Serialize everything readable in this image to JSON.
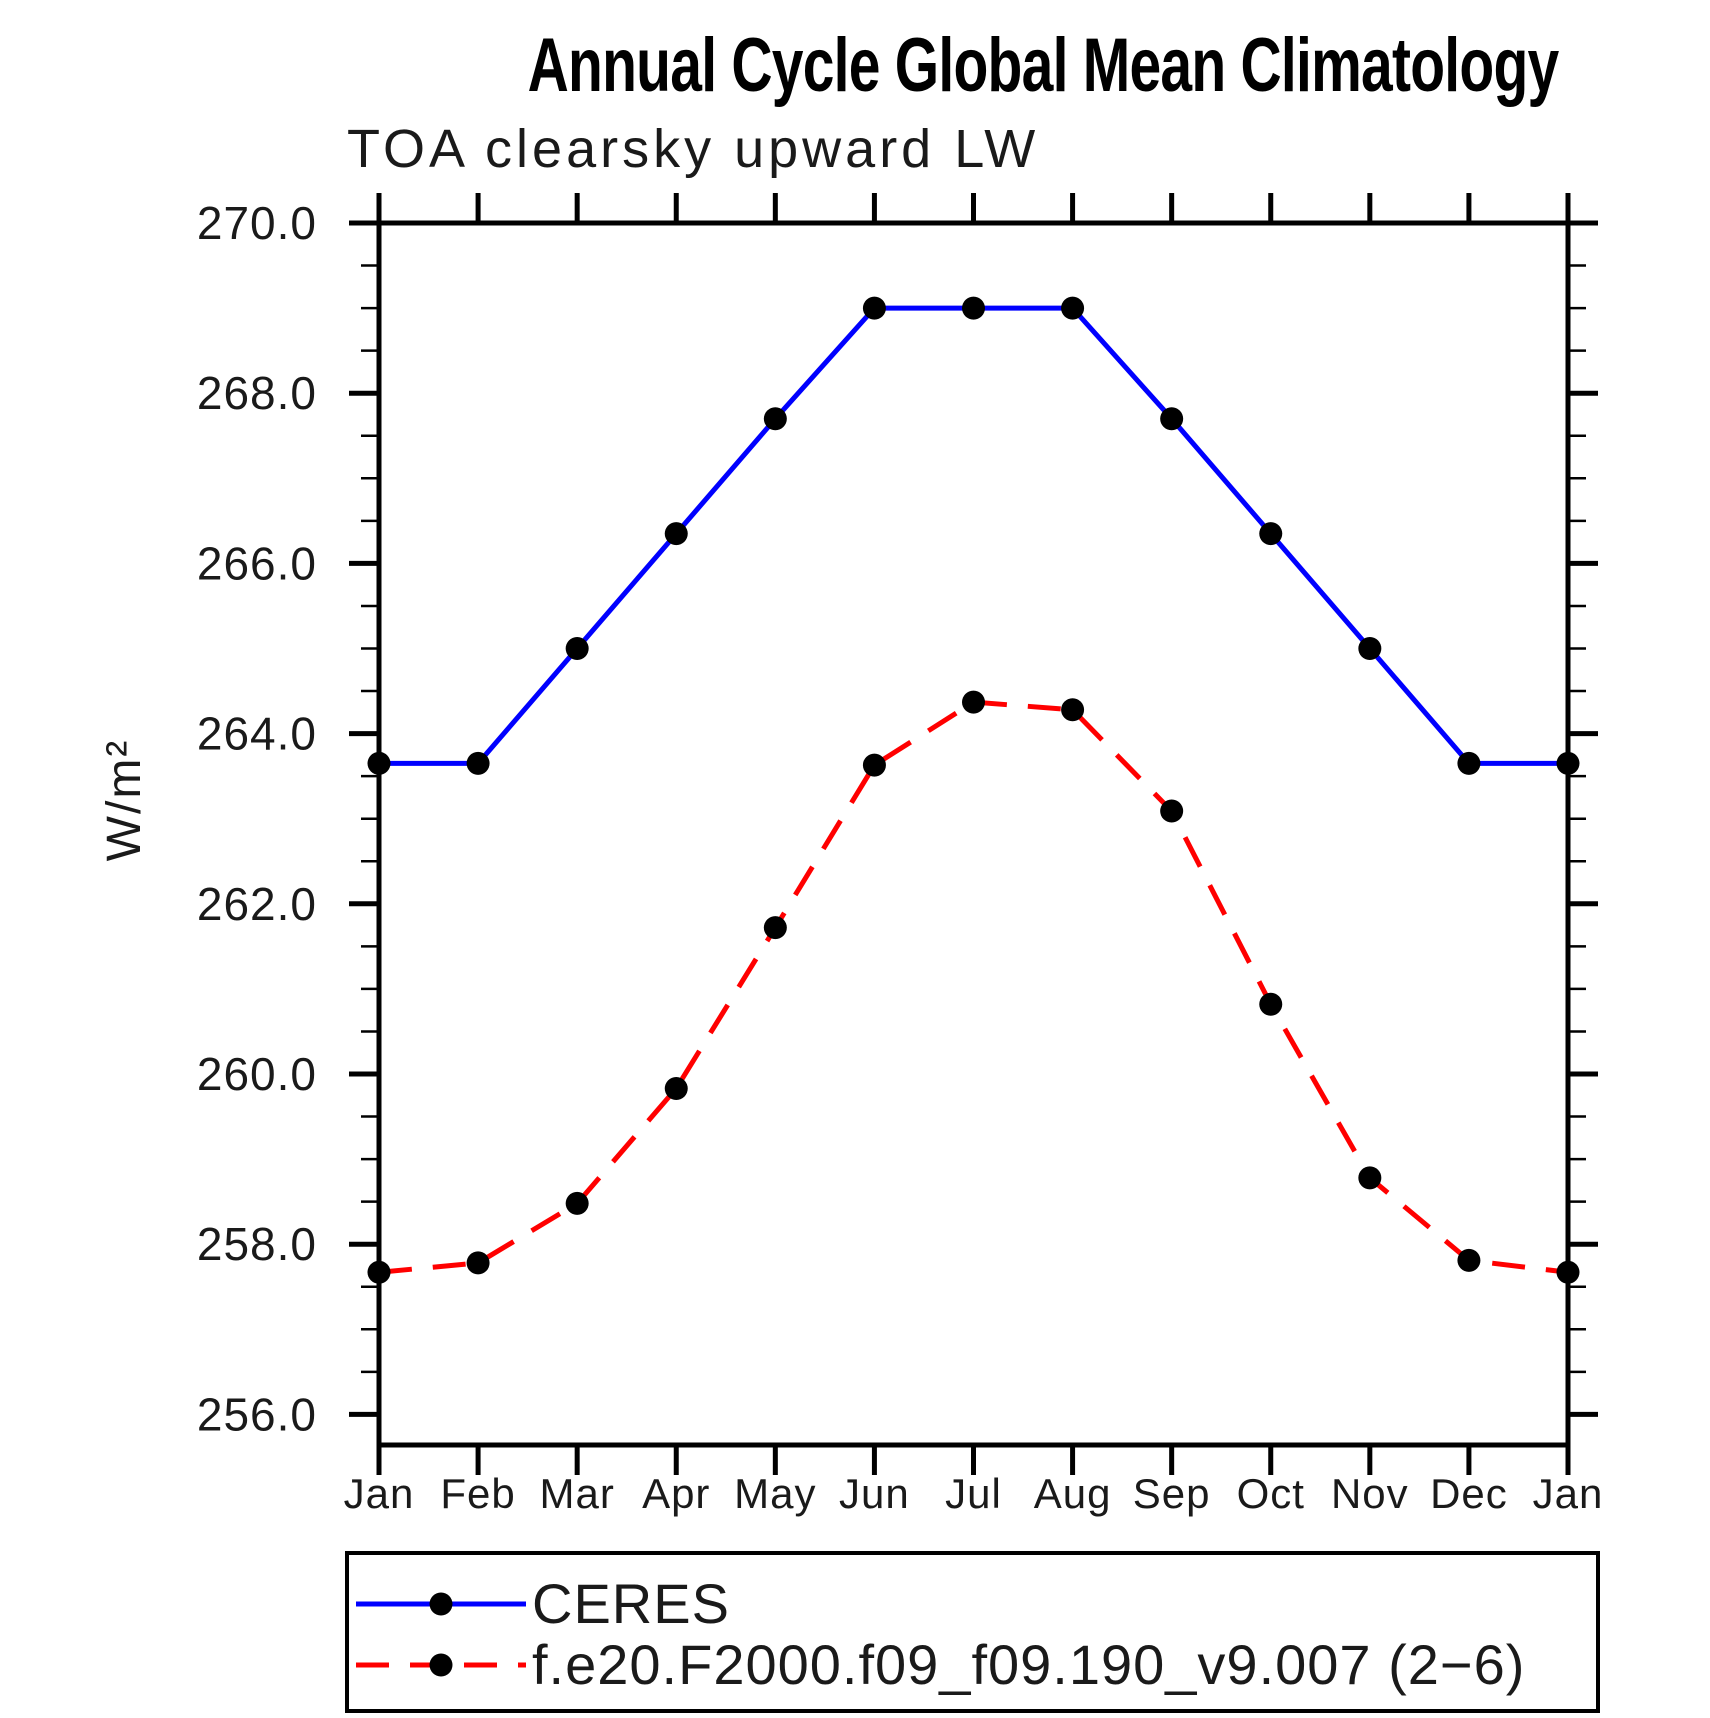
{
  "chart_data": {
    "type": "line",
    "title": "Annual Cycle Global Mean Climatology",
    "subtitle": "TOA clearsky upward LW",
    "xlabel": "",
    "ylabel": "W/m²",
    "categories": [
      "Jan",
      "Feb",
      "Mar",
      "Apr",
      "May",
      "Jun",
      "Jul",
      "Aug",
      "Sep",
      "Oct",
      "Nov",
      "Dec",
      "Jan"
    ],
    "series": [
      {
        "name": "CERES",
        "color": "#0000ff",
        "line_style": "solid",
        "marker": "circle",
        "marker_color": "#000000",
        "values": [
          263.65,
          263.65,
          265.0,
          266.35,
          267.7,
          269.0,
          269.0,
          269.0,
          267.7,
          266.35,
          265.0,
          263.65,
          263.65
        ]
      },
      {
        "name": "f.e20.F2000.f09_f09.190_v9.007 (2−6)",
        "color": "#ff0000",
        "line_style": "dashed",
        "marker": "circle",
        "marker_color": "#000000",
        "values": [
          257.67,
          257.78,
          258.48,
          259.83,
          261.72,
          263.63,
          264.37,
          264.28,
          263.09,
          260.82,
          258.78,
          257.81,
          257.67
        ]
      }
    ],
    "ylim": [
      255.64,
      270.0
    ],
    "y_major_ticks": [
      256.0,
      258.0,
      260.0,
      262.0,
      264.0,
      266.0,
      268.0,
      270.0
    ],
    "y_minor_tick_interval": 0.5,
    "grid": false,
    "legend_position": "bottom",
    "axis_color": "#000000"
  }
}
